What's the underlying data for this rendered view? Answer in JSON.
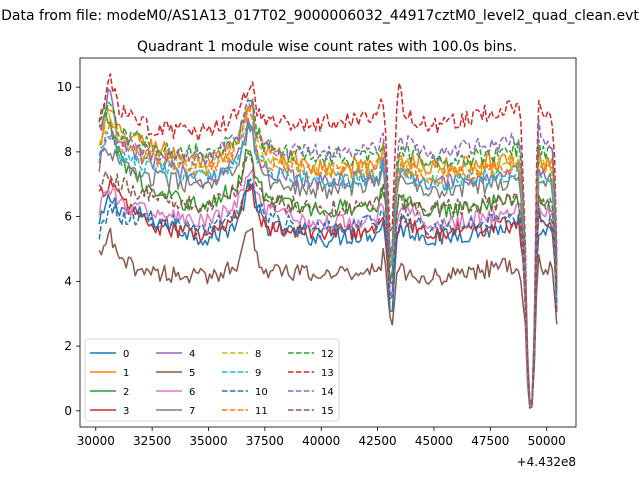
{
  "figure": {
    "suptitle": "Data from file: modeM0/AS1A13_017T02_9000006032_44917cztM0_level2_quad_clean.evt",
    "title": "Quadrant 1 module wise count rates with 100.0s bins."
  },
  "chart_data": {
    "type": "line",
    "title": "Quadrant 1 module wise count rates with 100.0s bins.",
    "xlabel": "",
    "ylabel": "",
    "x_offset_label": "+4.432e8",
    "xlim": [
      29300,
      51300
    ],
    "ylim": [
      -0.5,
      10.9
    ],
    "x_ticks": [
      30000,
      32500,
      35000,
      37500,
      40000,
      42500,
      45000,
      47500,
      50000
    ],
    "x_tick_labels": [
      "30000",
      "32500",
      "35000",
      "37500",
      "40000",
      "42500",
      "45000",
      "47500",
      "50000"
    ],
    "y_ticks": [
      0,
      2,
      4,
      6,
      8,
      10
    ],
    "y_tick_labels": [
      "0",
      "2",
      "4",
      "6",
      "8",
      "10"
    ],
    "grid": false,
    "legend": "lower-left",
    "legend_columns": 4,
    "x_profile": [
      30150,
      30600,
      31000,
      32500,
      35000,
      36300,
      36700,
      36900,
      37100,
      37600,
      40000,
      42500,
      42800,
      43000,
      43100,
      43200,
      43400,
      43700,
      45000,
      47500,
      48800,
      49000,
      49200,
      49400,
      49600,
      49800,
      50100,
      50300,
      50450
    ],
    "series": [
      {
        "name": "0",
        "color": "#1f77b4",
        "dash": "solid",
        "values": [
          5.7,
          6.6,
          6.3,
          5.9,
          5.3,
          5.8,
          6.8,
          7.1,
          6.3,
          5.7,
          5.3,
          5.5,
          5.9,
          3.8,
          2.4,
          4.0,
          5.6,
          5.6,
          5.3,
          5.6,
          5.7,
          4.0,
          0.3,
          0.3,
          5.6,
          5.4,
          5.5,
          5.3,
          3.0
        ]
      },
      {
        "name": "1",
        "color": "#ff7f0e",
        "dash": "solid",
        "values": [
          8.1,
          9.4,
          8.6,
          8.2,
          7.6,
          8.3,
          9.2,
          9.6,
          8.6,
          8.0,
          7.5,
          7.6,
          8.2,
          5.5,
          3.9,
          5.8,
          7.7,
          7.8,
          7.5,
          7.7,
          7.8,
          5.8,
          0.2,
          0.2,
          8.0,
          7.6,
          7.7,
          7.5,
          4.2
        ]
      },
      {
        "name": "2",
        "color": "#2ca02c",
        "dash": "solid",
        "values": [
          8.7,
          9.0,
          7.9,
          6.7,
          6.3,
          7.0,
          8.0,
          8.3,
          7.2,
          6.5,
          6.2,
          6.4,
          7.0,
          4.6,
          3.4,
          4.8,
          6.5,
          6.4,
          6.2,
          6.4,
          6.6,
          4.8,
          0.2,
          0.2,
          6.8,
          6.4,
          6.5,
          6.3,
          3.6
        ]
      },
      {
        "name": "3",
        "color": "#d62728",
        "dash": "solid",
        "values": [
          6.6,
          7.1,
          6.6,
          5.7,
          5.4,
          6.0,
          6.9,
          7.3,
          6.2,
          5.7,
          5.5,
          5.6,
          6.1,
          4.0,
          2.8,
          4.3,
          5.8,
          5.8,
          5.5,
          5.7,
          5.8,
          4.2,
          0.2,
          0.2,
          6.0,
          5.8,
          5.8,
          5.6,
          3.2
        ]
      },
      {
        "name": "4",
        "color": "#9467bd",
        "dash": "solid",
        "values": [
          8.6,
          9.9,
          8.2,
          7.7,
          7.1,
          7.8,
          8.8,
          9.0,
          8.0,
          7.4,
          7.1,
          7.2,
          7.8,
          5.2,
          3.8,
          5.5,
          7.3,
          7.3,
          7.0,
          7.2,
          7.4,
          5.4,
          0.2,
          0.2,
          7.6,
          7.2,
          7.3,
          7.1,
          4.0
        ]
      },
      {
        "name": "5",
        "color": "#8c564b",
        "dash": "solid",
        "values": [
          4.7,
          5.5,
          4.6,
          4.3,
          4.1,
          4.6,
          5.4,
          5.9,
          4.8,
          4.3,
          4.2,
          4.4,
          4.8,
          3.1,
          2.3,
          3.3,
          4.5,
          4.3,
          4.1,
          4.4,
          4.5,
          3.2,
          0.1,
          0.1,
          4.6,
          4.4,
          4.5,
          4.2,
          2.4
        ]
      },
      {
        "name": "6",
        "color": "#e377c2",
        "dash": "solid",
        "values": [
          6.3,
          7.0,
          6.4,
          6.1,
          5.8,
          6.4,
          7.3,
          7.6,
          6.6,
          6.1,
          5.8,
          6.0,
          6.5,
          4.3,
          3.1,
          4.5,
          6.1,
          6.1,
          5.8,
          6.0,
          6.2,
          4.5,
          0.2,
          0.2,
          6.4,
          6.1,
          6.1,
          5.9,
          3.4
        ]
      },
      {
        "name": "7",
        "color": "#7f7f7f",
        "dash": "solid",
        "values": [
          7.6,
          8.2,
          7.6,
          7.2,
          6.9,
          7.5,
          8.5,
          8.9,
          7.7,
          7.1,
          6.8,
          7.0,
          7.6,
          5.0,
          3.6,
          5.3,
          7.1,
          7.1,
          6.8,
          7.0,
          7.2,
          5.2,
          0.2,
          0.2,
          7.4,
          7.0,
          7.1,
          6.9,
          3.9
        ]
      },
      {
        "name": "8",
        "color": "#bcbd22",
        "dash": "dashed",
        "values": [
          8.4,
          9.2,
          8.3,
          7.8,
          7.5,
          8.2,
          9.2,
          9.5,
          8.3,
          7.7,
          7.4,
          7.5,
          8.1,
          5.4,
          3.9,
          5.7,
          7.6,
          7.6,
          7.3,
          7.5,
          7.7,
          5.6,
          0.2,
          0.2,
          7.9,
          7.5,
          7.6,
          7.3,
          4.1
        ]
      },
      {
        "name": "9",
        "color": "#17becf",
        "dash": "dashed",
        "values": [
          8.0,
          8.6,
          7.9,
          7.5,
          7.2,
          7.8,
          8.8,
          9.1,
          8.0,
          7.4,
          7.1,
          7.2,
          7.8,
          5.2,
          3.7,
          5.5,
          7.3,
          7.3,
          7.0,
          7.2,
          7.4,
          5.4,
          0.2,
          0.2,
          7.6,
          7.2,
          7.3,
          7.0,
          3.9
        ]
      },
      {
        "name": "10",
        "color": "#1f77b4",
        "dash": "dashed",
        "values": [
          5.4,
          6.4,
          6.0,
          5.9,
          5.6,
          6.2,
          7.1,
          7.4,
          6.4,
          5.9,
          5.6,
          5.8,
          6.3,
          4.2,
          3.0,
          4.4,
          5.9,
          5.9,
          5.6,
          5.8,
          6.0,
          4.4,
          0.2,
          0.2,
          6.2,
          5.9,
          5.9,
          5.7,
          3.3
        ]
      },
      {
        "name": "11",
        "color": "#ff7f0e",
        "dash": "dashed",
        "values": [
          8.3,
          9.0,
          8.2,
          7.8,
          7.5,
          8.1,
          9.1,
          9.4,
          8.2,
          7.7,
          7.4,
          7.5,
          8.1,
          5.3,
          3.9,
          5.6,
          7.5,
          7.5,
          7.2,
          7.5,
          7.6,
          5.6,
          0.2,
          0.2,
          7.9,
          7.5,
          7.6,
          7.3,
          4.1
        ]
      },
      {
        "name": "12",
        "color": "#2ca02c",
        "dash": "dashed",
        "values": [
          9.0,
          9.4,
          8.6,
          8.2,
          7.9,
          8.5,
          9.5,
          9.8,
          8.7,
          8.1,
          7.8,
          7.9,
          8.6,
          5.7,
          4.1,
          5.9,
          7.9,
          8.0,
          7.7,
          7.9,
          8.1,
          5.9,
          0.2,
          0.2,
          8.3,
          7.9,
          8.0,
          7.7,
          4.3
        ]
      },
      {
        "name": "13",
        "color": "#d62728",
        "dash": "dashed",
        "values": [
          8.9,
          10.3,
          9.3,
          8.7,
          8.6,
          9.1,
          9.9,
          10.2,
          9.3,
          8.9,
          8.9,
          9.2,
          9.6,
          6.3,
          4.6,
          6.6,
          10.3,
          9.1,
          8.8,
          9.2,
          9.4,
          6.8,
          0.2,
          0.2,
          9.8,
          9.3,
          9.2,
          8.9,
          5.0
        ]
      },
      {
        "name": "14",
        "color": "#9467bd",
        "dash": "dashed",
        "values": [
          7.6,
          8.7,
          8.3,
          7.9,
          7.8,
          8.4,
          9.3,
          9.6,
          8.6,
          8.1,
          8.0,
          8.2,
          8.6,
          5.8,
          4.2,
          6.0,
          8.2,
          8.3,
          8.0,
          8.2,
          8.4,
          6.2,
          0.2,
          0.2,
          8.9,
          8.4,
          8.4,
          8.1,
          4.5
        ]
      },
      {
        "name": "15",
        "color": "#8c564b",
        "dash": "dashed",
        "values": [
          6.9,
          7.5,
          7.0,
          6.6,
          6.3,
          6.9,
          7.8,
          8.1,
          7.1,
          6.5,
          6.2,
          6.4,
          6.9,
          4.6,
          3.3,
          4.8,
          6.5,
          6.4,
          6.2,
          6.4,
          6.6,
          4.8,
          0.2,
          0.2,
          6.8,
          6.4,
          6.5,
          6.2,
          3.6
        ]
      }
    ]
  }
}
